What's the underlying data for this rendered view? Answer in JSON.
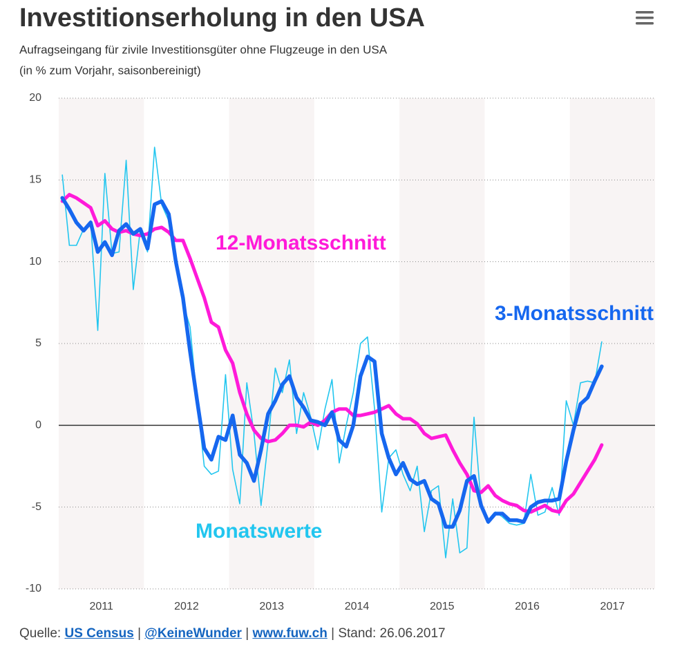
{
  "chart_data": {
    "type": "line",
    "title": "Investitionserholung in den USA",
    "subtitle": [
      "Aufragseingang für zivile Investitionsgüter ohne Flugzeuge in den USA",
      "(in % zum Vorjahr, saisonbereinigt)"
    ],
    "x": [
      2011.042,
      2011.125,
      2011.208,
      2011.292,
      2011.375,
      2011.458,
      2011.542,
      2011.625,
      2011.708,
      2011.792,
      2011.875,
      2011.958,
      2012.042,
      2012.125,
      2012.208,
      2012.292,
      2012.375,
      2012.458,
      2012.542,
      2012.625,
      2012.708,
      2012.792,
      2012.875,
      2012.958,
      2013.042,
      2013.125,
      2013.208,
      2013.292,
      2013.375,
      2013.458,
      2013.542,
      2013.625,
      2013.708,
      2013.792,
      2013.875,
      2013.958,
      2014.042,
      2014.125,
      2014.208,
      2014.292,
      2014.375,
      2014.458,
      2014.542,
      2014.625,
      2014.708,
      2014.792,
      2014.875,
      2014.958,
      2015.042,
      2015.125,
      2015.208,
      2015.292,
      2015.375,
      2015.458,
      2015.542,
      2015.625,
      2015.708,
      2015.792,
      2015.875,
      2015.958,
      2016.042,
      2016.125,
      2016.208,
      2016.292,
      2016.375,
      2016.458,
      2016.542,
      2016.625,
      2016.708,
      2016.792,
      2016.875,
      2016.958,
      2017.042,
      2017.125,
      2017.208,
      2017.292,
      2017.375
    ],
    "series": [
      {
        "name": "Monatswerte",
        "color": "#22c6ef",
        "width": 1.6,
        "values": [
          15.3,
          11,
          11,
          12,
          12.5,
          5.8,
          15.4,
          10.5,
          10.6,
          16.2,
          8.3,
          12,
          10.6,
          17,
          13.5,
          12.5,
          10,
          7.5,
          6,
          1.5,
          -2.5,
          -3,
          -2.8,
          3.1,
          -2.7,
          -4.8,
          2.6,
          -0.5,
          -4.9,
          -1,
          3.5,
          2,
          4,
          -0.5,
          2,
          0.5,
          -1.5,
          1,
          2.8,
          -2.3,
          0,
          2,
          5,
          5.4,
          1,
          -5.3,
          -2,
          -1.5,
          -3,
          -4,
          -2.5,
          -6.5,
          -4,
          -3.7,
          -8.1,
          -4.5,
          -7.8,
          -7.5,
          0.5,
          -4.8,
          -6,
          -5.3,
          -5.6,
          -6,
          -6.1,
          -6,
          -3,
          -5.5,
          -5.3,
          -3.8,
          -5.5,
          1.5,
          0,
          2.6,
          2.7,
          2.6,
          5.1
        ]
      },
      {
        "name": "12-Monatsschnitt",
        "color": "#ff1ad9",
        "width": 5,
        "values": [
          13.7,
          14.1,
          13.9,
          13.6,
          13.3,
          12.2,
          12.5,
          12.0,
          11.8,
          11.9,
          11.7,
          11.6,
          11.7,
          12.0,
          12.1,
          11.8,
          11.3,
          11.3,
          10.2,
          9.0,
          7.8,
          6.3,
          6.0,
          4.6,
          3.8,
          2.0,
          0.7,
          -0.3,
          -0.8,
          -1.0,
          -0.9,
          -0.5,
          0,
          0,
          -0.1,
          0.2,
          0,
          0.3,
          0.8,
          1.0,
          1.0,
          0.6,
          0.6,
          0.7,
          0.8,
          1.0,
          1.2,
          0.7,
          0.4,
          0.4,
          0.1,
          -0.5,
          -0.8,
          -0.7,
          -0.6,
          -1.5,
          -2.3,
          -3.0,
          -4.0,
          -4.1,
          -3.7,
          -4.3,
          -4.6,
          -4.8,
          -4.9,
          -5.2,
          -5.3,
          -5.1,
          -4.9,
          -5.2,
          -5.3,
          -4.6,
          -4.2,
          -3.5,
          -2.8,
          -2.1,
          -1.2
        ]
      },
      {
        "name": "3-Monatsschnitt",
        "color": "#1667ef",
        "width": 5.5,
        "values": [
          13.9,
          13.2,
          12.4,
          11.9,
          12.4,
          10.6,
          11.2,
          10.4,
          11.9,
          12.3,
          11.7,
          12,
          10.8,
          13.5,
          13.7,
          12.9,
          10.0,
          7.8,
          4.5,
          1.5,
          -1.4,
          -2.1,
          -0.7,
          -0.9,
          0.6,
          -1.8,
          -2.3,
          -3.4,
          -1.5,
          0.7,
          1.5,
          2.5,
          3.0,
          1.7,
          1.1,
          0.3,
          0.2,
          0,
          0.8,
          -0.9,
          -1.3,
          0,
          3.0,
          4.2,
          3.9,
          -0.5,
          -2.0,
          -3.0,
          -2.3,
          -3.3,
          -3.6,
          -3.4,
          -4.5,
          -4.8,
          -6.2,
          -6.2,
          -5.2,
          -3.4,
          -3.1,
          -4.9,
          -5.9,
          -5.4,
          -5.4,
          -5.8,
          -5.8,
          -5.9,
          -5.0,
          -4.7,
          -4.6,
          -4.6,
          -4.5,
          -2.2,
          -0.3,
          1.3,
          1.7,
          2.7,
          3.6
        ]
      }
    ],
    "xlim": [
      2011,
      2018
    ],
    "xticks": [
      {
        "value": 2011.5,
        "label": "2011"
      },
      {
        "value": 2012.5,
        "label": "2012"
      },
      {
        "value": 2013.5,
        "label": "2013"
      },
      {
        "value": 2014.5,
        "label": "2014"
      },
      {
        "value": 2015.5,
        "label": "2015"
      },
      {
        "value": 2016.5,
        "label": "2016"
      },
      {
        "value": 2017.5,
        "label": "2017"
      }
    ],
    "ylim": [
      -10,
      20
    ],
    "yticks": [
      -10,
      -5,
      0,
      5,
      10,
      15,
      20
    ],
    "grid": true,
    "source": {
      "prefix": "Quelle:",
      "links": [
        "US Census",
        "@KeineWunder",
        "www.fuw.ch"
      ],
      "separator": "|",
      "date": "Stand: 26.06.2017"
    }
  }
}
